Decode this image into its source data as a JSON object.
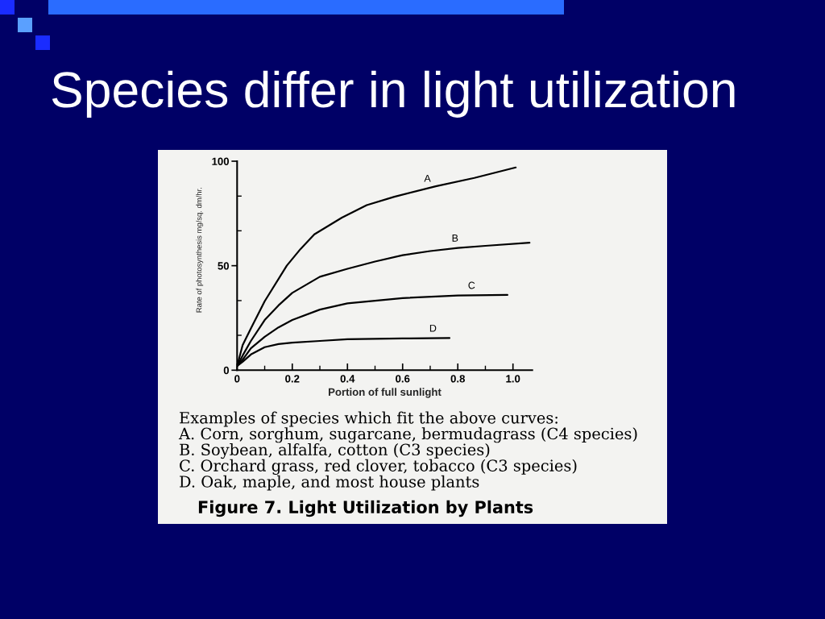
{
  "chart_data": {
    "type": "line",
    "title": "Species differ in light utilization",
    "xlabel": "Portion of full sunlight",
    "ylabel": "Rate of photosynthesis mg/sq. dm/hr.",
    "xlim": [
      0,
      1.07
    ],
    "ylim": [
      0,
      100
    ],
    "xticks": [
      0,
      {
        "value": 0.1,
        "label": null
      },
      0.2,
      {
        "value": 0.3,
        "label": null
      },
      0.4,
      {
        "value": 0.5,
        "label": null
      },
      0.6,
      {
        "value": 0.7,
        "label": null
      },
      0.8,
      {
        "value": 0.9,
        "label": null
      },
      {
        "value": 1,
        "label": "1.0"
      }
    ],
    "yticks": [
      0,
      {
        "value": 16.7,
        "label": null
      },
      {
        "value": 33.3,
        "label": null
      },
      50,
      {
        "value": 66.7,
        "label": null
      },
      {
        "value": 83.3,
        "label": null
      },
      100
    ],
    "series": [
      {
        "color": "#000000",
        "x": [
          0,
          0.02,
          0.05,
          0.1,
          0.18,
          0.23,
          0.28,
          0.38,
          0.47,
          0.57,
          0.72,
          0.86,
          1.01
        ],
        "values": [
          2,
          12,
          20,
          33,
          50,
          58,
          65,
          73,
          79,
          83,
          88,
          92,
          97
        ]
      },
      {
        "color": "#000000",
        "x": [
          0,
          0.02,
          0.05,
          0.1,
          0.15,
          0.2,
          0.3,
          0.4,
          0.5,
          0.6,
          0.7,
          0.8,
          0.9,
          1.06
        ],
        "values": [
          2,
          7,
          14,
          24,
          31,
          37,
          44.7,
          48.5,
          52,
          55,
          57,
          58.5,
          59.5,
          61
        ]
      },
      {
        "color": "#000000",
        "x": [
          0,
          0.02,
          0.05,
          0.1,
          0.15,
          0.2,
          0.3,
          0.4,
          0.6,
          0.8,
          0.98
        ],
        "values": [
          2,
          5,
          10.5,
          16,
          20.5,
          24,
          29,
          32,
          34.5,
          35.7,
          36
        ]
      },
      {
        "color": "#000000",
        "x": [
          0,
          0.02,
          0.05,
          0.1,
          0.15,
          0.2,
          0.3,
          0.4,
          0.6,
          0.77
        ],
        "values": [
          2,
          4,
          7.5,
          11,
          12.5,
          13.2,
          14,
          14.8,
          15.2,
          15.4
        ]
      }
    ],
    "annotations": [
      {
        "text": "A",
        "x": 0.69,
        "y": 87
      },
      {
        "text": "B",
        "x": 0.79,
        "y": 58.4
      },
      {
        "text": "C",
        "x": 0.85,
        "y": 35.8
      },
      {
        "text": "D",
        "x": 0.71,
        "y": 15.3
      },
      "Examples of species which fit the above curves:",
      "A. Corn, sorghum, sugarcane, bermudagrass (C4 species)",
      "B. Soybean, alfalfa, cotton (C3 species)",
      "C. Orchard grass, red clover, tobacco (C3 species)",
      "D. Oak, maple, and most house plants",
      "Figure 7. Light Utilization by Plants"
    ]
  }
}
